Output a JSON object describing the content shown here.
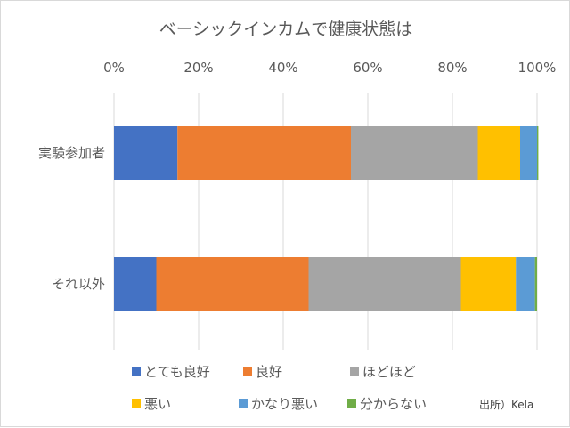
{
  "chart_data": {
    "type": "bar",
    "orientation": "horizontal",
    "stacked": "percent",
    "title": "ベーシックインカムで健康状態は",
    "x_ticks": [
      "0%",
      "20%",
      "40%",
      "60%",
      "80%",
      "100%"
    ],
    "xlim": [
      0,
      100
    ],
    "x_axis_position": "top",
    "grid": true,
    "categories": [
      "実験参加者",
      "それ以外"
    ],
    "series": [
      {
        "name": "とても良好",
        "color": "#4472C4",
        "values": [
          15,
          10
        ]
      },
      {
        "name": "良好",
        "color": "#ED7D31",
        "values": [
          41,
          36
        ]
      },
      {
        "name": "ほどほど",
        "color": "#A5A5A5",
        "values": [
          30,
          36
        ]
      },
      {
        "name": "悪い",
        "color": "#FFC000",
        "values": [
          10,
          13
        ]
      },
      {
        "name": "かなり悪い",
        "color": "#5B9BD5",
        "values": [
          4,
          4.5
        ]
      },
      {
        "name": "分からない",
        "color": "#70AD47",
        "values": [
          0.3,
          0.5
        ]
      }
    ],
    "legend_position": "bottom"
  },
  "source_note": "出所）Kela"
}
